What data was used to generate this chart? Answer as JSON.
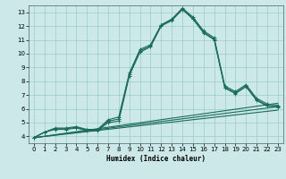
{
  "title": "",
  "xlabel": "Humidex (Indice chaleur)",
  "background_color": "#cce8e8",
  "grid_color": "#99cccc",
  "line_color": "#1a6b5a",
  "xlim": [
    -0.5,
    23.5
  ],
  "ylim": [
    3.5,
    13.5
  ],
  "xticks": [
    0,
    1,
    2,
    3,
    4,
    5,
    6,
    7,
    8,
    9,
    10,
    11,
    12,
    13,
    14,
    15,
    16,
    17,
    18,
    19,
    20,
    21,
    22,
    23
  ],
  "yticks": [
    4,
    5,
    6,
    7,
    8,
    9,
    10,
    11,
    12,
    13
  ],
  "line_main": [
    3.9,
    4.3,
    4.5,
    4.5,
    4.6,
    4.4,
    4.4,
    5.0,
    5.1,
    8.4,
    10.1,
    10.5,
    12.0,
    12.4,
    13.2,
    12.5,
    11.5,
    11.0,
    7.5,
    7.1,
    7.6,
    6.6,
    6.2,
    6.1
  ],
  "line_p75": [
    3.9,
    4.3,
    4.55,
    4.55,
    4.65,
    4.45,
    4.45,
    5.1,
    5.25,
    8.5,
    10.2,
    10.55,
    12.05,
    12.45,
    13.25,
    12.55,
    11.55,
    11.05,
    7.55,
    7.15,
    7.65,
    6.65,
    6.25,
    6.15
  ],
  "line_p90": [
    3.9,
    4.3,
    4.6,
    4.6,
    4.7,
    4.5,
    4.5,
    5.2,
    5.4,
    8.6,
    10.3,
    10.65,
    12.1,
    12.5,
    13.3,
    12.65,
    11.65,
    11.15,
    7.65,
    7.25,
    7.75,
    6.75,
    6.35,
    6.25
  ],
  "line_straight1": {
    "x": [
      0,
      23
    ],
    "y": [
      3.9,
      5.9
    ]
  },
  "line_straight2": {
    "x": [
      0,
      23
    ],
    "y": [
      3.9,
      6.15
    ]
  },
  "line_straight3": {
    "x": [
      0,
      23
    ],
    "y": [
      3.9,
      6.4
    ]
  },
  "marker_style": "+",
  "linewidth": 0.8,
  "markersize": 3.5
}
